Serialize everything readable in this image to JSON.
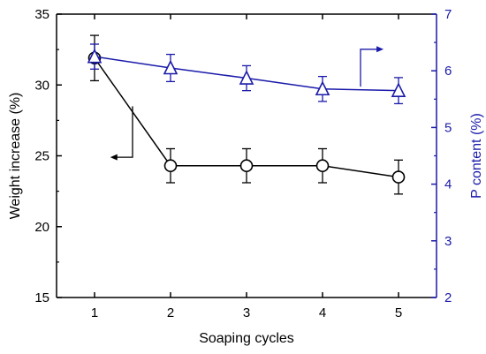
{
  "colors": {
    "left_axis": "#000000",
    "right_axis": "#1a1aaa",
    "series_weight": "#000000",
    "series_p": "#1a1aaa"
  },
  "chart_data": {
    "type": "line",
    "xlabel": "Soaping cycles",
    "ylabel_left": "Weight increase (%)",
    "ylabel_right": "P content (%)",
    "x": [
      1,
      2,
      3,
      4,
      5
    ],
    "xlim": [
      0.5,
      5.5
    ],
    "xticks": [
      "1",
      "2",
      "3",
      "4",
      "5"
    ],
    "ylim_left": [
      15,
      35
    ],
    "yticks_left": [
      "15",
      "20",
      "25",
      "30",
      "35"
    ],
    "ylim_right": [
      2,
      7
    ],
    "yticks_right": [
      "2",
      "3",
      "4",
      "5",
      "6",
      "7"
    ],
    "grid": false,
    "series": [
      {
        "axis": "left",
        "marker": "circle",
        "values": [
          31.9,
          24.3,
          24.3,
          24.3,
          23.5
        ],
        "errors": [
          1.6,
          1.2,
          1.2,
          1.2,
          1.2
        ]
      },
      {
        "axis": "right",
        "marker": "triangle",
        "values": [
          6.25,
          6.05,
          5.87,
          5.68,
          5.65
        ],
        "errors": [
          0.22,
          0.24,
          0.22,
          0.22,
          0.23
        ]
      }
    ],
    "annotations": [
      {
        "type": "arrow",
        "points_to": "left",
        "series": 0
      },
      {
        "type": "arrow",
        "points_to": "right",
        "series": 1
      }
    ]
  }
}
